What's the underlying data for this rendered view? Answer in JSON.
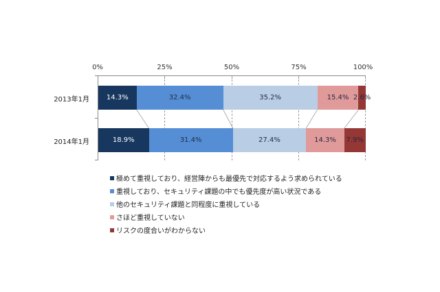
{
  "chart_data": {
    "type": "bar",
    "orientation": "horizontal",
    "stacked": "percent",
    "title": "",
    "xlabel": "",
    "ylabel": "",
    "xlim": [
      0,
      100
    ],
    "x_ticks": [
      "0%",
      "25%",
      "50%",
      "75%",
      "100%"
    ],
    "categories": [
      "2013年1月",
      "2014年1月"
    ],
    "series": [
      {
        "name": "極めて重視しており、経営陣からも最優先で対応するよう求められている",
        "color": "#17375e",
        "label_color": "#ffffff",
        "values": [
          14.3,
          18.9
        ]
      },
      {
        "name": "重視しており、セキュリティ課題の中でも優先度が高い状況である",
        "color": "#558ed5",
        "label_color": "#1f2a44",
        "values": [
          32.4,
          31.4
        ]
      },
      {
        "name": "他のセキュリティ課題と同程度に重視している",
        "color": "#b9cde5",
        "label_color": "#1f2a44",
        "values": [
          35.2,
          27.4
        ]
      },
      {
        "name": "さほど重視していない",
        "color": "#e09a9a",
        "label_color": "#1f2a44",
        "values": [
          15.4,
          14.3
        ]
      },
      {
        "name": "リスクの度合いがわからない",
        "color": "#953735",
        "label_color": "#1f2a44",
        "values": [
          2.6,
          7.9
        ]
      }
    ],
    "data_labels": [
      [
        "14.3%",
        "32.4%",
        "35.2%",
        "15.4%",
        "2.6%"
      ],
      [
        "18.9%",
        "31.4%",
        "27.4%",
        "14.3%",
        "7.9%"
      ]
    ],
    "grid": "vertical dashed at 25/50/75/100",
    "legend_position": "bottom",
    "series_lines": true
  }
}
